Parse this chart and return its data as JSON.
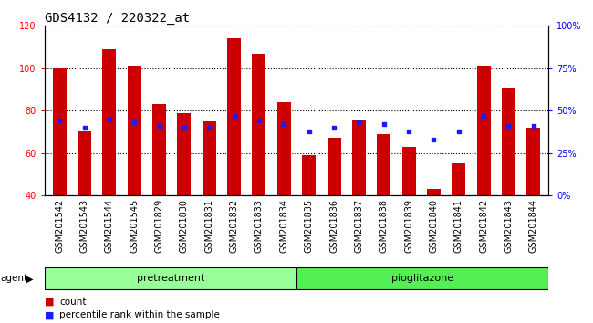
{
  "title": "GDS4132 / 220322_at",
  "categories": [
    "GSM201542",
    "GSM201543",
    "GSM201544",
    "GSM201545",
    "GSM201829",
    "GSM201830",
    "GSM201831",
    "GSM201832",
    "GSM201833",
    "GSM201834",
    "GSM201835",
    "GSM201836",
    "GSM201837",
    "GSM201838",
    "GSM201839",
    "GSM201840",
    "GSM201841",
    "GSM201842",
    "GSM201843",
    "GSM201844"
  ],
  "count_values": [
    100,
    70,
    109,
    101,
    83,
    79,
    75,
    114,
    107,
    84,
    59,
    67,
    76,
    69,
    63,
    43,
    55,
    101,
    91,
    72
  ],
  "percentile_values": [
    44,
    40,
    45,
    43,
    41,
    40,
    40,
    47,
    44,
    42,
    38,
    40,
    43,
    42,
    38,
    33,
    38,
    47,
    41,
    41
  ],
  "group1_label": "pretreatment",
  "group2_label": "pioglitazone",
  "group1_count": 10,
  "group2_count": 10,
  "ylim_left": [
    40,
    120
  ],
  "ylim_right": [
    0,
    100
  ],
  "yticks_left": [
    40,
    60,
    80,
    100,
    120
  ],
  "yticks_right": [
    0,
    25,
    50,
    75,
    100
  ],
  "yticklabels_right": [
    "0%",
    "25%",
    "50%",
    "75%",
    "100%"
  ],
  "bar_color": "#cc0000",
  "dot_color": "#1a1aff",
  "group1_bg": "#99ff99",
  "group2_bg": "#55ee55",
  "xtick_bg": "#cccccc",
  "agent_label": "agent",
  "legend_count": "count",
  "legend_pct": "percentile rank within the sample",
  "title_fontsize": 10,
  "tick_fontsize": 7,
  "group_fontsize": 8
}
